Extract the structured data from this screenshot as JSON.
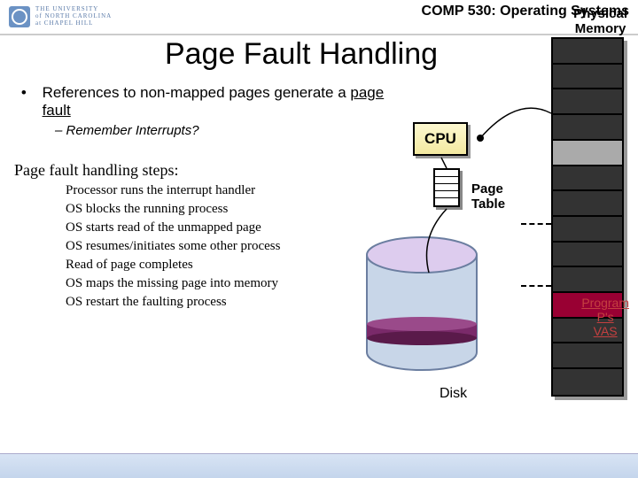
{
  "header": {
    "uni_line1": "THE UNIVERSITY",
    "uni_line2": "of NORTH CAROLINA",
    "uni_line3": "at CHAPEL HILL",
    "course": "COMP 530: Operating Systems"
  },
  "title": "Page Fault Handling",
  "bullet": {
    "lead": "References to non-mapped pages generate a ",
    "emph": "page fault",
    "sub": "–   Remember Interrupts?"
  },
  "steps": {
    "heading": "Page fault handling steps:",
    "items": [
      "Processor runs the interrupt handler",
      "OS blocks the running process",
      "OS starts read of the unmapped page",
      "OS resumes/initiates some other process",
      "Read of page completes",
      "OS maps the missing page into memory",
      "OS restart the faulting process"
    ]
  },
  "diagram": {
    "phys_mem_label": "Physical\nMemory",
    "cpu_label": "CPU",
    "page_table_label": "Page\nTable",
    "vas_label": "Program\nP's\nVAS",
    "disk_label": "Disk",
    "mem_cells": 14,
    "mem_colors": [
      "#333333",
      "#333333",
      "#333333",
      "#333333",
      "#aaaaaa",
      "#333333",
      "#333333",
      "#333333",
      "#333333",
      "#333333",
      "#990033",
      "#333333",
      "#333333",
      "#333333"
    ],
    "disk_body": "#c8d6e8",
    "disk_band": "#7a2a6a",
    "disk_top_tint": "#ddccee"
  }
}
